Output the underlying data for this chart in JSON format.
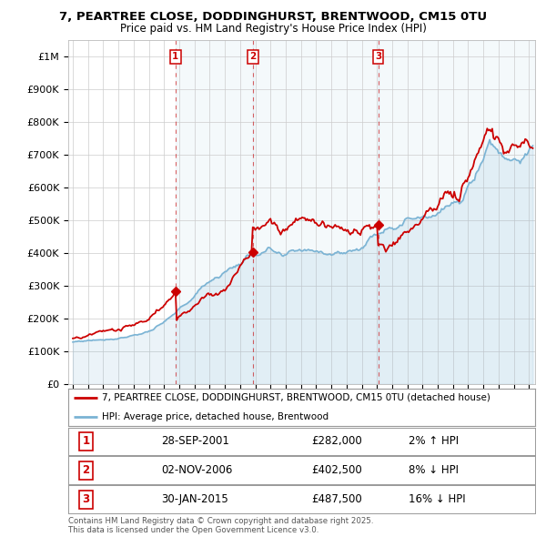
{
  "title_line1": "7, PEARTREE CLOSE, DODDINGHURST, BRENTWOOD, CM15 0TU",
  "title_line2": "Price paid vs. HM Land Registry's House Price Index (HPI)",
  "ylabel_ticks": [
    "£0",
    "£100K",
    "£200K",
    "£300K",
    "£400K",
    "£500K",
    "£600K",
    "£700K",
    "£800K",
    "£900K",
    "£1M"
  ],
  "ytick_values": [
    0,
    100000,
    200000,
    300000,
    400000,
    500000,
    600000,
    700000,
    800000,
    900000,
    1000000
  ],
  "xmin": 1994.7,
  "xmax": 2025.4,
  "ymin": 0,
  "ymax": 1000000,
  "sale_dates": [
    2001.74,
    2006.83,
    2015.08
  ],
  "sale_prices": [
    282000,
    402500,
    487500
  ],
  "sale_labels": [
    "1",
    "2",
    "3"
  ],
  "sale_date_strs": [
    "28-SEP-2001",
    "02-NOV-2006",
    "30-JAN-2015"
  ],
  "sale_price_strs": [
    "£282,000",
    "£402,500",
    "£487,500"
  ],
  "sale_hpi_strs": [
    "2% ↑ HPI",
    "8% ↓ HPI",
    "16% ↓ HPI"
  ],
  "legend_line1": "7, PEARTREE CLOSE, DODDINGHURST, BRENTWOOD, CM15 0TU (detached house)",
  "legend_line2": "HPI: Average price, detached house, Brentwood",
  "footer": "Contains HM Land Registry data © Crown copyright and database right 2025.\nThis data is licensed under the Open Government Licence v3.0.",
  "house_color": "#cc0000",
  "hpi_color": "#7ab3d4",
  "hpi_fill_color": "#ddeeff",
  "background_color": "#ffffff",
  "grid_color": "#cccccc",
  "xtick_years": [
    1995,
    1996,
    1997,
    1998,
    1999,
    2000,
    2001,
    2002,
    2003,
    2004,
    2005,
    2006,
    2007,
    2008,
    2009,
    2010,
    2011,
    2012,
    2013,
    2014,
    2015,
    2016,
    2017,
    2018,
    2019,
    2020,
    2021,
    2022,
    2023,
    2024,
    2025
  ]
}
